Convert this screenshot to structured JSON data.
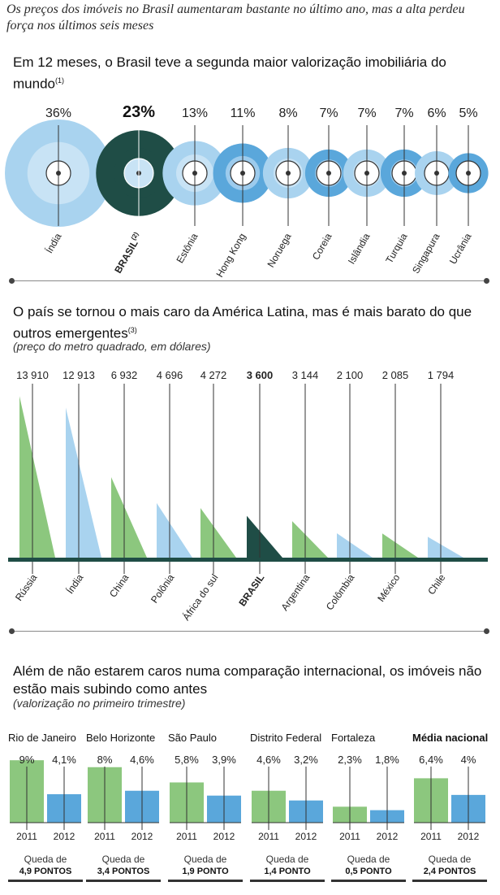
{
  "headline": "Os preços dos imóveis no Brasil aumentaram bastante no último ano, mas a alta perdeu força nos últimos seis meses",
  "colors": {
    "blue": "#a9d3ef",
    "darkblue": "#5aa7db",
    "green": "#8cc77e",
    "dark": "#1f4d46",
    "line": "#333333"
  },
  "chart_data": [
    {
      "type": "bubble",
      "title": "Em 12 meses, o Brasil teve a segunda maior valorização imobiliária do mundo",
      "footnote_mark": "(1)",
      "highlight": "BRASIL",
      "highlight_mark": "(2)",
      "categories": [
        "Índia",
        "BRASIL",
        "Estônia",
        "Hong Kong",
        "Noruega",
        "Coreia",
        "Islândia",
        "Turquia",
        "Singapura",
        "Ucrânia"
      ],
      "labels": [
        "36%",
        "23%",
        "13%",
        "11%",
        "8%",
        "7%",
        "7%",
        "7%",
        "6%",
        "5%"
      ],
      "values": [
        36,
        23,
        13,
        11,
        8,
        7,
        7,
        7,
        6,
        5
      ]
    },
    {
      "type": "bar",
      "title": "O país se tornou o mais caro da América Latina, mas é mais barato do que outros emergentes",
      "footnote_mark": "(3)",
      "subtitle": "(preço do metro quadrado, em dólares)",
      "highlight": "BRASIL",
      "categories": [
        "Rússia",
        "Índia",
        "China",
        "Polônia",
        "África do sul",
        "BRASIL",
        "Argentina",
        "Colômbia",
        "México",
        "Chile"
      ],
      "labels": [
        "13 910",
        "12 913",
        "6 932",
        "4 696",
        "4 272",
        "3 600",
        "3 144",
        "2 100",
        "2 085",
        "1 794"
      ],
      "values": [
        13910,
        12913,
        6932,
        4696,
        4272,
        3600,
        3144,
        2100,
        2085,
        1794
      ],
      "ylim": [
        0,
        14000
      ]
    },
    {
      "type": "bar",
      "title": "Além de não estarem caros numa comparação internacional, os imóveis não estão mais subindo como antes",
      "subtitle": "(valorização no primeiro trimestre)",
      "highlight": "Média nacional",
      "categories": [
        "Rio de Janeiro",
        "Belo Horizonte",
        "São Paulo",
        "Distrito Federal",
        "Fortaleza",
        "Média nacional"
      ],
      "x": [
        "2011",
        "2012"
      ],
      "queda_label": "Queda de",
      "series": [
        {
          "name": "2011",
          "values": [
            9,
            8,
            5.8,
            4.6,
            2.3,
            6.4
          ],
          "labels": [
            "9%",
            "8%",
            "5,8%",
            "4,6%",
            "2,3%",
            "6,4%"
          ]
        },
        {
          "name": "2012",
          "values": [
            4.1,
            4.6,
            3.9,
            3.2,
            1.8,
            4
          ],
          "labels": [
            "4,1%",
            "4,6%",
            "3,9%",
            "3,2%",
            "1,8%",
            "4%"
          ]
        }
      ],
      "drops": [
        "4,9 PONTOS",
        "3,4 PONTOS",
        "1,9 PONTO",
        "1,4 PONTO",
        "0,5 PONTO",
        "2,4 PONTOS"
      ],
      "ylim": [
        0,
        10
      ]
    }
  ]
}
